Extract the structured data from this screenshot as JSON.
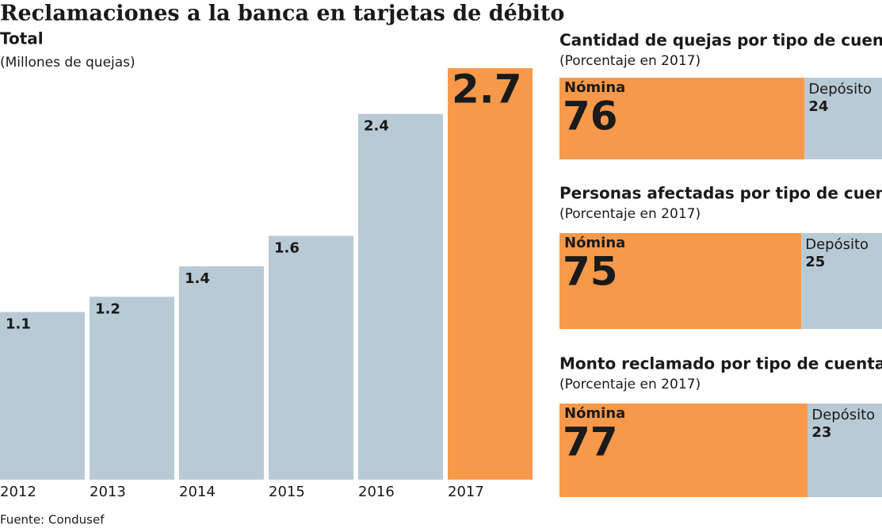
{
  "title": "Reclamaciones a la banca en tarjetas de débito",
  "source": "Fuente: Condusef",
  "chart_data": [
    {
      "type": "bar",
      "title": "Total",
      "subtitle": "(Millones de quejas)",
      "categories": [
        "2012",
        "2013",
        "2014",
        "2015",
        "2016",
        "2017"
      ],
      "values": [
        1.1,
        1.2,
        1.4,
        1.6,
        2.4,
        2.7
      ],
      "colors": [
        "#b8cad5",
        "#b8cad5",
        "#b8cad5",
        "#b8cad5",
        "#b8cad5",
        "#f7994a"
      ]
    },
    {
      "type": "stacked-bar",
      "title": "Cantidad de quejas por tipo de cuenta",
      "subtitle": "(Porcentaje en 2017)",
      "series": [
        {
          "name": "Nómina",
          "color": "#f7994a",
          "values": [
            76
          ]
        },
        {
          "name": "Depósito",
          "color": "#b8cad5",
          "values": [
            24
          ]
        }
      ]
    },
    {
      "type": "stacked-bar",
      "title": "Personas afectadas por tipo de cuenta",
      "subtitle": "(Porcentaje en 2017)",
      "series": [
        {
          "name": "Nómina",
          "color": "#f7994a",
          "values": [
            75
          ]
        },
        {
          "name": "Depósito",
          "color": "#b8cad5",
          "values": [
            25
          ]
        }
      ]
    },
    {
      "type": "stacked-bar",
      "title": "Monto reclamado por tipo de cuenta",
      "subtitle": "(Porcentaje en 2017)",
      "series": [
        {
          "name": "Nómina",
          "color": "#f7994a",
          "values": [
            77
          ]
        },
        {
          "name": "Depósito",
          "color": "#b8cad5",
          "values": [
            23
          ]
        }
      ]
    }
  ]
}
